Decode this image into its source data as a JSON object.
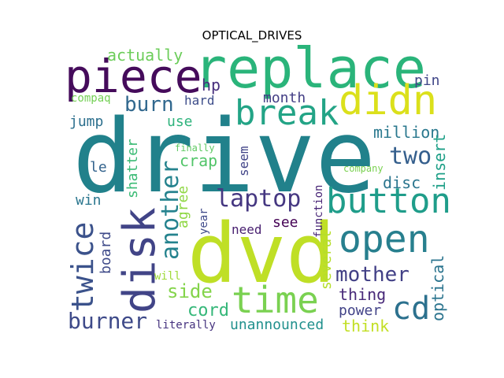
{
  "title": "OPTICAL_DRIVES",
  "words": [
    {
      "text": "drive",
      "color": "#21818b"
    },
    {
      "text": "dvd",
      "color": "#bfdf26"
    },
    {
      "text": "replace",
      "color": "#2ab47a"
    },
    {
      "text": "piece",
      "color": "#450b5b"
    },
    {
      "text": "didn",
      "color": "#dbe01b"
    },
    {
      "text": "break",
      "color": "#23a486"
    },
    {
      "text": "button",
      "color": "#1f9d8a"
    },
    {
      "text": "open",
      "color": "#277f8e"
    },
    {
      "text": "disk",
      "color": "#414487"
    },
    {
      "text": "time",
      "color": "#7ad151"
    },
    {
      "text": "twice",
      "color": "#3b528b"
    },
    {
      "text": "cd",
      "color": "#2c718e"
    },
    {
      "text": "burn",
      "color": "#31688e"
    },
    {
      "text": "laptop",
      "color": "#453781"
    },
    {
      "text": "burner",
      "color": "#3e4a89"
    },
    {
      "text": "mother",
      "color": "#424086"
    },
    {
      "text": "another",
      "color": "#25838e"
    },
    {
      "text": "cord",
      "color": "#35b779"
    },
    {
      "text": "side",
      "color": "#84d44b"
    },
    {
      "text": "two",
      "color": "#355f8d"
    },
    {
      "text": "actually",
      "color": "#6ccd5a"
    },
    {
      "text": "hp",
      "color": "#472f7d"
    },
    {
      "text": "pin",
      "color": "#404688"
    },
    {
      "text": "hard",
      "color": "#3d4d8a"
    },
    {
      "text": "month",
      "color": "#433e85"
    },
    {
      "text": "compaq",
      "color": "#74d055"
    },
    {
      "text": "jump",
      "color": "#2d708e"
    },
    {
      "text": "use",
      "color": "#2eb37c"
    },
    {
      "text": "million",
      "color": "#2a788e"
    },
    {
      "text": "shatter",
      "color": "#3bbb75"
    },
    {
      "text": "crap",
      "color": "#52c569"
    },
    {
      "text": "seem",
      "color": "#404387"
    },
    {
      "text": "finally",
      "color": "#5ec962"
    },
    {
      "text": "le",
      "color": "#33638d"
    },
    {
      "text": "agree",
      "color": "#8fd744"
    },
    {
      "text": "function",
      "color": "#482576"
    },
    {
      "text": "company",
      "color": "#7ad151"
    },
    {
      "text": "insert",
      "color": "#1fa088"
    },
    {
      "text": "disc",
      "color": "#2b758e"
    },
    {
      "text": "win",
      "color": "#2a768e"
    },
    {
      "text": "year",
      "color": "#3e4989"
    },
    {
      "text": "see",
      "color": "#440154"
    },
    {
      "text": "need",
      "color": "#481f70"
    },
    {
      "text": "board",
      "color": "#3e4a89"
    },
    {
      "text": "several",
      "color": "#b5de2b"
    },
    {
      "text": "optical",
      "color": "#2b748e"
    },
    {
      "text": "will",
      "color": "#a0da39"
    },
    {
      "text": "thing",
      "color": "#482979"
    },
    {
      "text": "power",
      "color": "#414287"
    },
    {
      "text": "literally",
      "color": "#46337f"
    },
    {
      "text": "unannounced",
      "color": "#21908d"
    },
    {
      "text": "think",
      "color": "#c2df23"
    }
  ]
}
